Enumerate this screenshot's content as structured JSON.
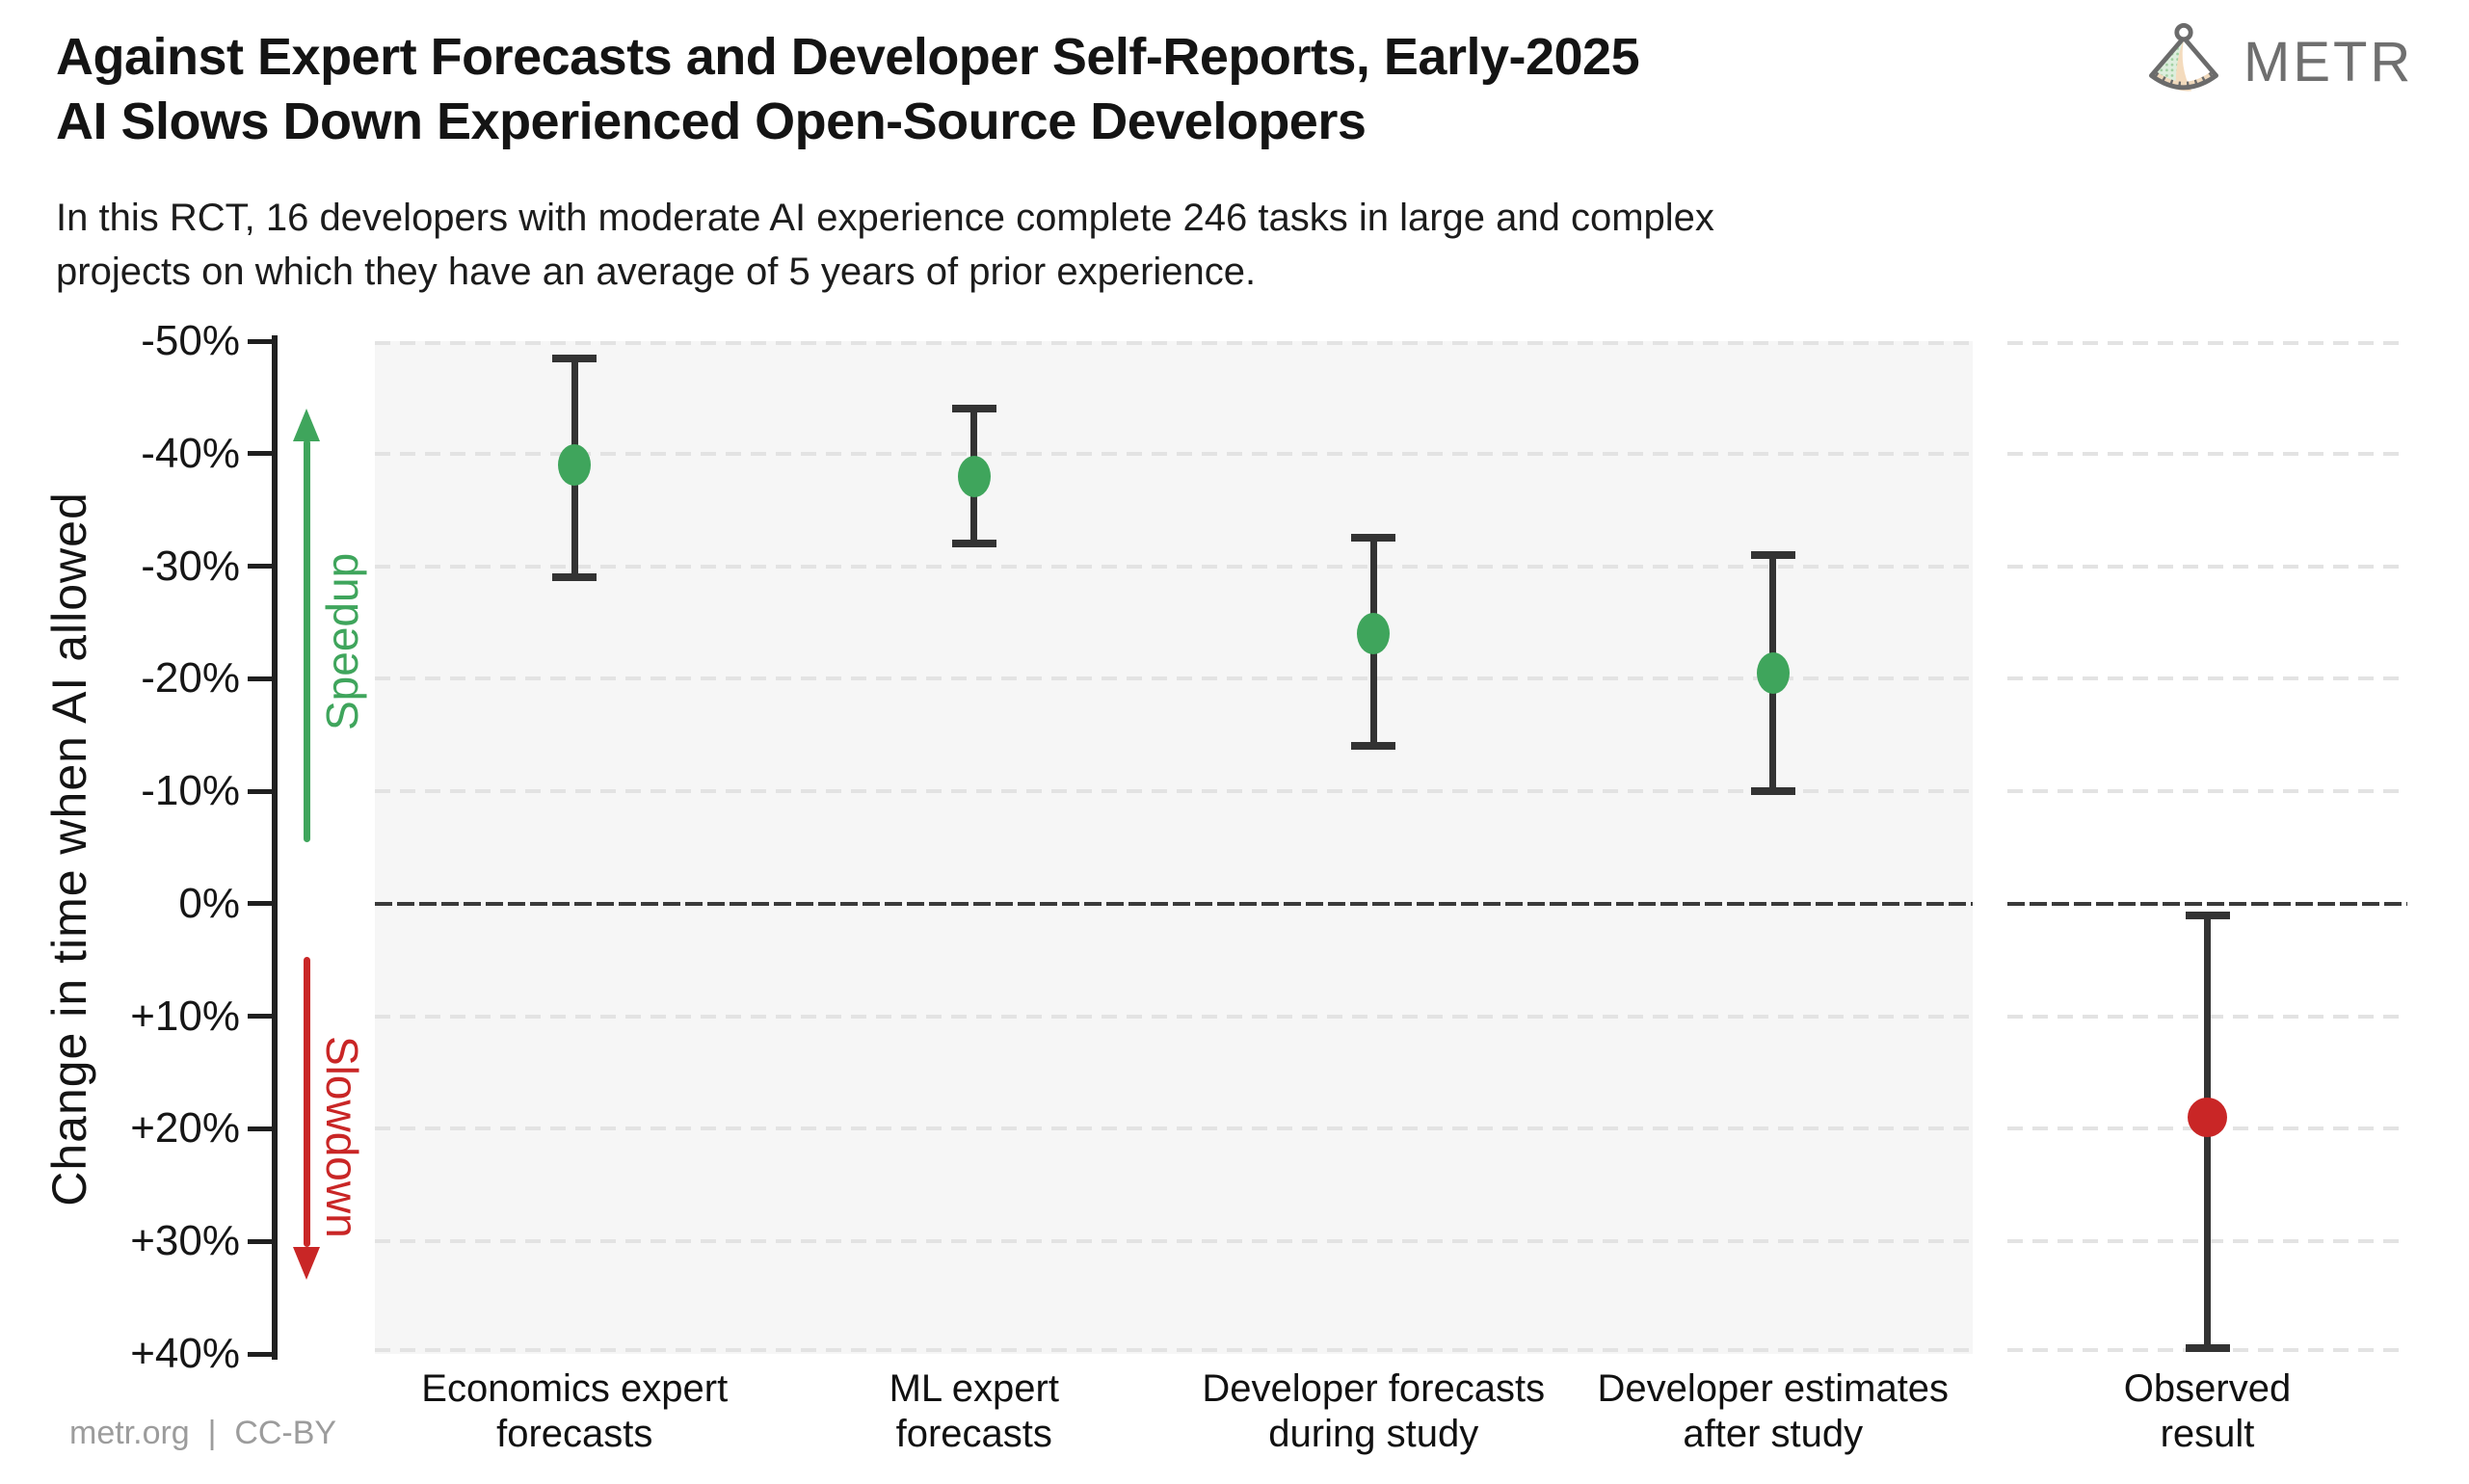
{
  "header": {
    "title_line1": "Against Expert Forecasts and Developer Self-Reports, Early-2025",
    "title_line2": "AI Slows Down Experienced Open-Source Developers",
    "subtitle_line1": "In this RCT, 16 developers with moderate AI experience complete 246 tasks in large and complex",
    "subtitle_line2": "projects on which they have an average of 5 years of prior experience.",
    "brand": "METR"
  },
  "annotations": {
    "speedup": "Speedup",
    "slowdown": "Slowdown"
  },
  "footer": {
    "credit": "metr.org  |  CC-BY"
  },
  "colors": {
    "green": "#3fa55c",
    "red": "#c92626",
    "errorbar_dark": "#333333",
    "zero_line": "#3a3a3a",
    "gridline": "#e3e3e3",
    "panel_bg": "#f6f6f6",
    "axis_dark": "#1f1f1f",
    "title_text": "#141414",
    "brand_gray": "#6f6f6f",
    "footer_gray": "#9c9c9c"
  },
  "chart_data": {
    "type": "scatter",
    "subtype": "point-estimates-with-error-bars",
    "title": "Against Expert Forecasts and Developer Self-Reports, Early-2025 AI Slows Down Experienced Open-Source Developers",
    "ylabel": "Change in time when AI allowed",
    "xlabel": "",
    "y_axis_inverted": true,
    "ylim_top": -50,
    "ylim_bottom": 40,
    "grid": "dashed horizontal at every 10%",
    "yticks": [
      {
        "value": -50,
        "label": "-50%"
      },
      {
        "value": -40,
        "label": "-40%"
      },
      {
        "value": -30,
        "label": "-30%"
      },
      {
        "value": -20,
        "label": "-20%"
      },
      {
        "value": -10,
        "label": "-10%"
      },
      {
        "value": 0,
        "label": "0%"
      },
      {
        "value": 10,
        "label": "+10%"
      },
      {
        "value": 20,
        "label": "+20%"
      },
      {
        "value": 30,
        "label": "+30%"
      },
      {
        "value": 40,
        "label": "+40%"
      }
    ],
    "zero_reference_value": 0,
    "points": [
      {
        "category_lines": [
          "Economics expert",
          "forecasts"
        ],
        "value": -39,
        "ci_min": -48.5,
        "ci_max": -29,
        "color_key": "green",
        "panel": "main"
      },
      {
        "category_lines": [
          "ML expert",
          "forecasts"
        ],
        "value": -38,
        "ci_min": -44,
        "ci_max": -32,
        "color_key": "green",
        "panel": "main"
      },
      {
        "category_lines": [
          "Developer forecasts",
          "during study"
        ],
        "value": -24,
        "ci_min": -32.5,
        "ci_max": -14,
        "color_key": "green",
        "panel": "main"
      },
      {
        "category_lines": [
          "Developer estimates",
          "after study"
        ],
        "value": -20.5,
        "ci_min": -31,
        "ci_max": -10,
        "color_key": "green",
        "panel": "main"
      },
      {
        "category_lines": [
          "Observed",
          "result"
        ],
        "value": 19,
        "ci_min": 1,
        "ci_max": 39.5,
        "color_key": "red",
        "panel": "observed"
      }
    ]
  }
}
